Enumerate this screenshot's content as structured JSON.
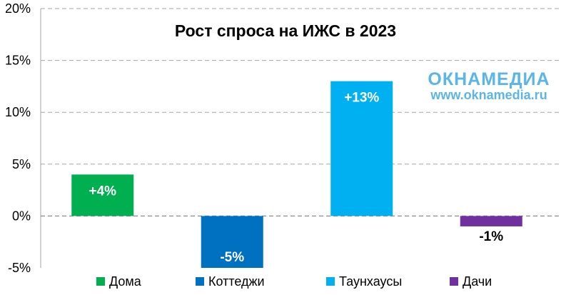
{
  "chart_data": {
    "type": "bar",
    "title": "Рост спроса на ИЖС в 2023",
    "categories": [
      "Дома",
      "Коттеджи",
      "Таунхаусы",
      "Дачи"
    ],
    "values": [
      4,
      -5,
      13,
      -1
    ],
    "data_labels": [
      "+4%",
      "-5%",
      "+13%",
      "-1%"
    ],
    "colors": [
      "#00B050",
      "#0070C0",
      "#00B0F0",
      "#7030A0"
    ],
    "ylim": [
      -5,
      20
    ],
    "y_ticks": [
      {
        "value": -5,
        "label": "-5%"
      },
      {
        "value": 0,
        "label": "0%"
      },
      {
        "value": 5,
        "label": "5%"
      },
      {
        "value": 10,
        "label": "10%"
      },
      {
        "value": 15,
        "label": "15%"
      },
      {
        "value": 20,
        "label": "20%"
      }
    ],
    "grid": true,
    "legend": "bottom"
  },
  "watermark": {
    "brand": "ОКНАМЕДИА",
    "url": "www.oknamedia.ru",
    "color": "#5BB5E8"
  }
}
